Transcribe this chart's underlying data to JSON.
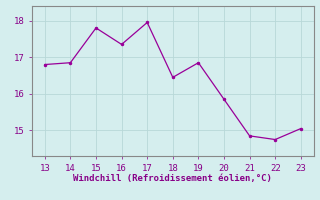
{
  "x": [
    13,
    14,
    15,
    16,
    17,
    18,
    19,
    20,
    21,
    22,
    23
  ],
  "y": [
    16.8,
    16.85,
    17.8,
    17.35,
    17.95,
    16.45,
    16.85,
    15.85,
    14.85,
    14.75,
    15.05
  ],
  "line_color": "#990099",
  "marker": ".",
  "marker_size": 3,
  "background_color": "#d5eeee",
  "grid_color": "#b8d8d8",
  "xlabel": "Windchill (Refroidissement éolien,°C)",
  "xlabel_color": "#880088",
  "tick_color": "#880088",
  "xlim": [
    12.5,
    23.5
  ],
  "ylim": [
    14.3,
    18.4
  ],
  "xticks": [
    13,
    14,
    15,
    16,
    17,
    18,
    19,
    20,
    21,
    22,
    23
  ],
  "yticks": [
    15,
    16,
    17,
    18
  ],
  "spine_color": "#888888"
}
